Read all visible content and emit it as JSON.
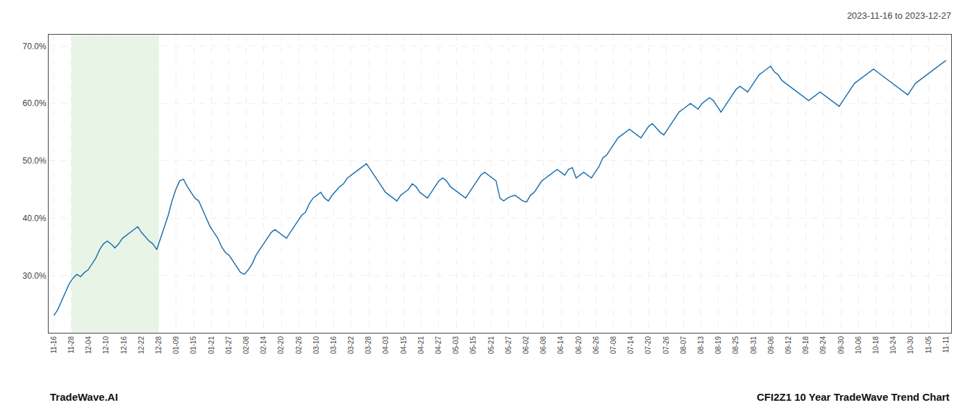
{
  "chart_data": {
    "type": "line",
    "title": "2023-11-16 to 2023-12-27",
    "annotations": [
      "TradeWave.AI",
      "CFI2Z1 10 Year TradeWave Trend Chart"
    ],
    "color": "#1a6faf",
    "grid": true,
    "shaded_range": {
      "x": [
        1,
        6
      ],
      "color": "#d6edd2"
    },
    "xlim": [
      -0.3,
      51.3
    ],
    "xticks": [
      {
        "value": 0,
        "label": "11-16"
      },
      {
        "value": 1,
        "label": "11-28"
      },
      {
        "value": 2,
        "label": "12-04"
      },
      {
        "value": 3,
        "label": "12-10"
      },
      {
        "value": 4,
        "label": "12-16"
      },
      {
        "value": 5,
        "label": "12-22"
      },
      {
        "value": 6,
        "label": "12-28"
      },
      {
        "value": 7,
        "label": "01-09"
      },
      {
        "value": 8,
        "label": "01-15"
      },
      {
        "value": 9,
        "label": "01-21"
      },
      {
        "value": 10,
        "label": "01-27"
      },
      {
        "value": 11,
        "label": "02-08"
      },
      {
        "value": 12,
        "label": "02-14"
      },
      {
        "value": 13,
        "label": "02-20"
      },
      {
        "value": 14,
        "label": "02-26"
      },
      {
        "value": 15,
        "label": "03-10"
      },
      {
        "value": 16,
        "label": "03-16"
      },
      {
        "value": 17,
        "label": "03-22"
      },
      {
        "value": 18,
        "label": "03-28"
      },
      {
        "value": 19,
        "label": "04-03"
      },
      {
        "value": 20,
        "label": "04-15"
      },
      {
        "value": 21,
        "label": "04-21"
      },
      {
        "value": 22,
        "label": "04-27"
      },
      {
        "value": 23,
        "label": "05-03"
      },
      {
        "value": 24,
        "label": "05-15"
      },
      {
        "value": 25,
        "label": "05-21"
      },
      {
        "value": 26,
        "label": "05-27"
      },
      {
        "value": 27,
        "label": "06-02"
      },
      {
        "value": 28,
        "label": "06-08"
      },
      {
        "value": 29,
        "label": "06-14"
      },
      {
        "value": 30,
        "label": "06-20"
      },
      {
        "value": 31,
        "label": "06-26"
      },
      {
        "value": 32,
        "label": "07-08"
      },
      {
        "value": 33,
        "label": "07-14"
      },
      {
        "value": 34,
        "label": "07-20"
      },
      {
        "value": 35,
        "label": "07-26"
      },
      {
        "value": 36,
        "label": "08-07"
      },
      {
        "value": 37,
        "label": "08-13"
      },
      {
        "value": 38,
        "label": "08-19"
      },
      {
        "value": 39,
        "label": "08-25"
      },
      {
        "value": 40,
        "label": "08-31"
      },
      {
        "value": 41,
        "label": "09-06"
      },
      {
        "value": 42,
        "label": "09-12"
      },
      {
        "value": 43,
        "label": "09-18"
      },
      {
        "value": 44,
        "label": "09-24"
      },
      {
        "value": 45,
        "label": "09-30"
      },
      {
        "value": 46,
        "label": "10-06"
      },
      {
        "value": 47,
        "label": "10-18"
      },
      {
        "value": 48,
        "label": "10-24"
      },
      {
        "value": 49,
        "label": "10-30"
      },
      {
        "value": 50,
        "label": "11-05"
      },
      {
        "value": 51,
        "label": "11-11"
      }
    ],
    "ylim": [
      20.0,
      72.0
    ],
    "yticks": [
      {
        "value": 30.0,
        "label": "30.0%"
      },
      {
        "value": 40.0,
        "label": "40.0%"
      },
      {
        "value": 50.0,
        "label": "50.0%"
      },
      {
        "value": 60.0,
        "label": "60.0%"
      },
      {
        "value": 70.0,
        "label": "70.0%"
      }
    ],
    "values": [
      23.0,
      24.0,
      25.5,
      27.0,
      28.5,
      29.5,
      30.2,
      29.8,
      30.5,
      31.0,
      32.0,
      33.0,
      34.5,
      35.5,
      36.0,
      35.5,
      34.8,
      35.5,
      36.5,
      37.0,
      37.5,
      38.0,
      38.5,
      37.5,
      36.8,
      36.0,
      35.5,
      34.5,
      36.5,
      38.5,
      40.5,
      43.0,
      45.0,
      46.5,
      46.8,
      45.5,
      44.5,
      43.5,
      43.0,
      41.5,
      40.0,
      38.5,
      37.5,
      36.5,
      35.0,
      34.0,
      33.5,
      32.5,
      31.5,
      30.5,
      30.2,
      31.0,
      32.0,
      33.5,
      34.5,
      35.5,
      36.5,
      37.5,
      38.0,
      37.5,
      37.0,
      36.5,
      37.5,
      38.5,
      39.5,
      40.5,
      41.0,
      42.5,
      43.5,
      44.0,
      44.5,
      43.5,
      43.0,
      44.0,
      44.8,
      45.5,
      46.0,
      47.0,
      47.5,
      48.0,
      48.5,
      49.0,
      49.5,
      48.5,
      47.5,
      46.5,
      45.5,
      44.5,
      44.0,
      43.5,
      43.0,
      44.0,
      44.5,
      45.0,
      46.0,
      45.5,
      44.5,
      44.0,
      43.5,
      44.5,
      45.5,
      46.5,
      47.0,
      46.5,
      45.5,
      45.0,
      44.5,
      44.0,
      43.5,
      44.5,
      45.5,
      46.5,
      47.5,
      48.0,
      47.5,
      47.0,
      46.5,
      43.5,
      43.0,
      43.5,
      43.8,
      44.0,
      43.5,
      43.0,
      42.8,
      44.0,
      44.5,
      45.5,
      46.5,
      47.0,
      47.5,
      48.0,
      48.5,
      48.0,
      47.5,
      48.5,
      48.8,
      47.0,
      47.5,
      48.0,
      47.5,
      47.0,
      48.0,
      49.0,
      50.5,
      51.0,
      52.0,
      53.0,
      54.0,
      54.5,
      55.0,
      55.5,
      55.0,
      54.5,
      54.0,
      55.0,
      56.0,
      56.5,
      55.8,
      55.0,
      54.5,
      55.5,
      56.5,
      57.5,
      58.5,
      59.0,
      59.5,
      60.0,
      59.5,
      59.0,
      60.0,
      60.5,
      61.0,
      60.5,
      59.5,
      58.5,
      59.5,
      60.5,
      61.5,
      62.5,
      63.0,
      62.5,
      62.0,
      63.0,
      64.0,
      65.0,
      65.5,
      66.0,
      66.5,
      65.5,
      65.0,
      64.0,
      63.5,
      63.0,
      62.5,
      62.0,
      61.5,
      61.0,
      60.5,
      61.0,
      61.5,
      62.0,
      61.5,
      61.0,
      60.5,
      60.0,
      59.5,
      60.5,
      61.5,
      62.5,
      63.5,
      64.0,
      64.5,
      65.0,
      65.5,
      66.0,
      65.5,
      65.0,
      64.5,
      64.0,
      63.5,
      63.0,
      62.5,
      62.0,
      61.5,
      62.5,
      63.5,
      64.0,
      64.5,
      65.0,
      65.5,
      66.0,
      66.5,
      67.0,
      67.5
    ]
  }
}
